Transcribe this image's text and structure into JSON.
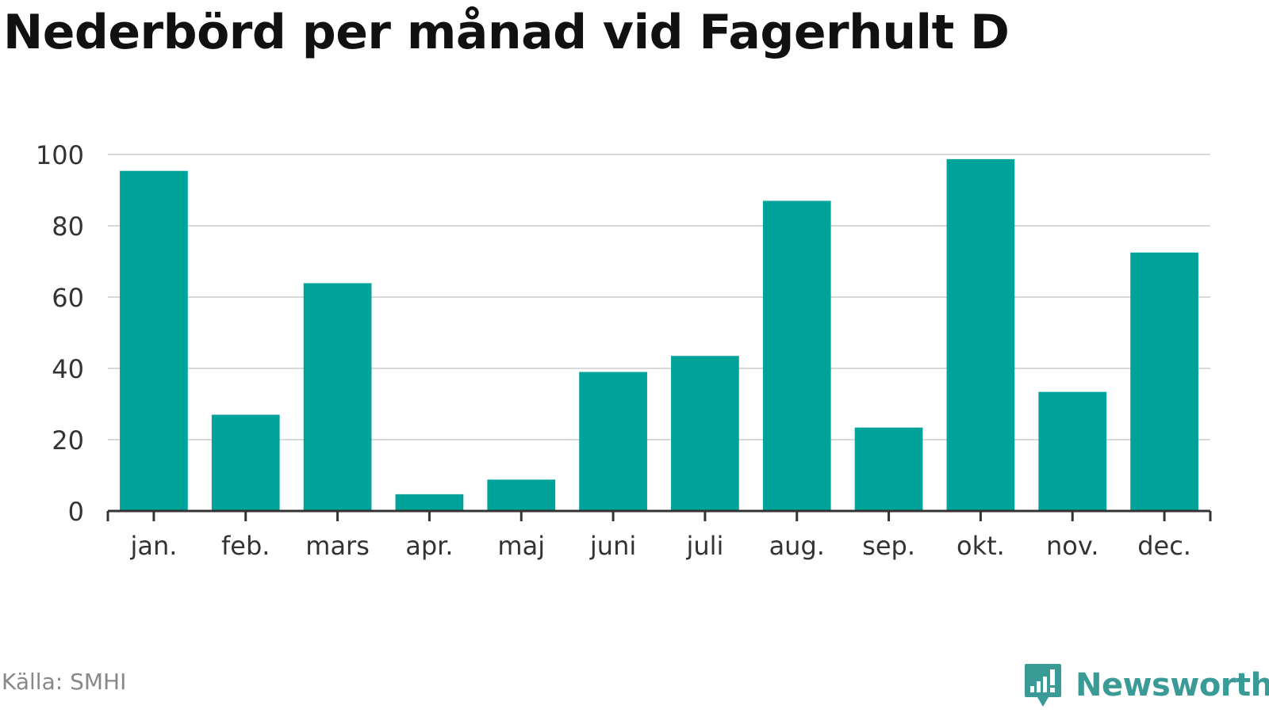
{
  "title": "Nederbörd per månad vid Fagerhult D",
  "source": "Källa: SMHI",
  "brand": {
    "name": "Newsworthy",
    "icon": "newsworthy-logo-icon",
    "color": "#3a9a96"
  },
  "chart_data": {
    "type": "bar",
    "title": "Nederbörd per månad vid Fagerhult D",
    "xlabel": "",
    "ylabel": "",
    "categories": [
      "jan.",
      "feb.",
      "mars",
      "apr.",
      "maj",
      "juni",
      "juli",
      "aug.",
      "sep.",
      "okt.",
      "nov.",
      "dec."
    ],
    "values": [
      95.4,
      27.0,
      63.9,
      4.7,
      8.8,
      39.0,
      43.5,
      87.0,
      23.4,
      98.7,
      33.4,
      72.5
    ],
    "ylim": [
      0,
      100
    ],
    "yticks": [
      0,
      20,
      40,
      60,
      80,
      100
    ],
    "grid": true,
    "legend": "none",
    "bar_color": "#00a39a"
  }
}
